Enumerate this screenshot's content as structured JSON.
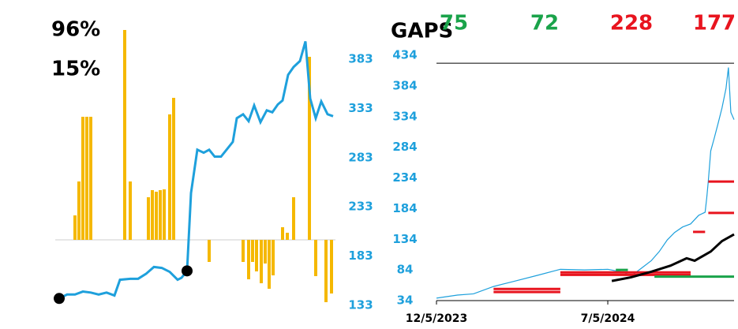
{
  "chart_data": [
    {
      "type": "bar_line",
      "labels": [
        "96%",
        "15%"
      ],
      "ylim": [
        109,
        443
      ],
      "yticks": [
        383,
        333,
        283,
        233,
        183,
        133
      ],
      "xlim": [
        0,
        350
      ],
      "line": {
        "color": "#1ea0dc",
        "x": [
          0,
          10,
          20,
          30,
          40,
          50,
          60,
          70,
          77,
          90,
          100,
          110,
          120,
          130,
          140,
          150,
          155,
          162,
          167,
          175,
          183,
          190,
          197,
          205,
          212,
          220,
          225,
          233,
          240,
          247,
          255,
          263,
          270,
          277,
          283,
          290,
          297,
          305,
          312,
          318,
          325,
          332,
          340,
          347
        ],
        "values": [
          140,
          144,
          144,
          147,
          146,
          144,
          146,
          143,
          159,
          160,
          160,
          165,
          172,
          171,
          167,
          159,
          161,
          168,
          247,
          291,
          288,
          291,
          284,
          284,
          291,
          299,
          323,
          327,
          320,
          336,
          319,
          331,
          329,
          337,
          341,
          367,
          375,
          381,
          401,
          343,
          323,
          340,
          327,
          325
        ]
      },
      "markers": [
        {
          "x": 0,
          "value": 140
        },
        {
          "x": 162,
          "value": 168
        }
      ],
      "bars": {
        "color": "#f5b800",
        "ylim": [
          -113,
          304
        ],
        "x": [
          20,
          25,
          30,
          35,
          40,
          83,
          90,
          113,
          118,
          123,
          128,
          133,
          140,
          145,
          190,
          233,
          240,
          245,
          250,
          256,
          261,
          266,
          271,
          283,
          289,
          297,
          317,
          325,
          338,
          345
        ],
        "values": [
          31,
          74,
          156,
          156,
          156,
          266,
          74,
          54,
          63,
          61,
          63,
          64,
          159,
          180,
          -28,
          -28,
          -50,
          -28,
          -40,
          -55,
          -30,
          -62,
          -45,
          16,
          9,
          54,
          232,
          -46,
          -79,
          -68
        ]
      }
    },
    {
      "type": "gaps",
      "title": "GAPS",
      "stats": [
        {
          "value": 75,
          "color": "#1aa34a"
        },
        {
          "value": 72,
          "color": "#1aa34a"
        },
        {
          "value": 228,
          "color": "#e8141e"
        },
        {
          "value": 177,
          "color": "#e8141e"
        }
      ],
      "ylim": [
        34,
        434
      ],
      "yticks": [
        434,
        384,
        334,
        284,
        234,
        184,
        134,
        84,
        34
      ],
      "xlim": [
        0,
        370
      ],
      "xticks": [
        {
          "value": 0,
          "label": "12/5/2023"
        },
        {
          "value": 213,
          "label": "7/5/2024"
        }
      ],
      "hline": 421,
      "price": {
        "color": "#1ea0dc",
        "x": [
          0,
          26,
          46,
          71,
          95,
          125,
          154,
          184,
          213,
          233,
          242,
          257,
          267,
          277,
          287,
          296,
          306,
          316,
          326,
          334,
          336,
          338,
          341,
          345,
          350,
          355,
          360,
          363,
          366,
          370
        ],
        "values": [
          38,
          43,
          45,
          57,
          65,
          75,
          85,
          84,
          85,
          80,
          74,
          89,
          99,
          114,
          133,
          145,
          154,
          159,
          173,
          178,
          201,
          229,
          278,
          297,
          322,
          348,
          380,
          414,
          341,
          329
        ]
      },
      "average": {
        "color": "#000000",
        "x": [
          218,
          242,
          267,
          291,
          311,
          321,
          341,
          355,
          370
        ],
        "values": [
          66,
          72,
          81,
          91,
          103,
          99,
          114,
          131,
          142
        ]
      },
      "gaps": [
        {
          "color": "#e8141e",
          "x": [
            71,
            154
          ],
          "value": 53
        },
        {
          "color": "#e8141e",
          "x": [
            71,
            154
          ],
          "value": 48
        },
        {
          "color": "#e8141e",
          "x": [
            154,
            316
          ],
          "value": 80
        },
        {
          "color": "#e8141e",
          "x": [
            154,
            316
          ],
          "value": 76
        },
        {
          "color": "#1aa34a",
          "x": [
            223,
            238
          ],
          "value": 84
        },
        {
          "color": "#1aa34a",
          "x": [
            271,
            370
          ],
          "value": 73
        },
        {
          "color": "#e8141e",
          "x": [
            319,
            334
          ],
          "value": 146
        },
        {
          "color": "#e8141e",
          "x": [
            338,
            370
          ],
          "value": 177
        },
        {
          "color": "#e8141e",
          "x": [
            338,
            370
          ],
          "value": 228
        }
      ]
    }
  ]
}
